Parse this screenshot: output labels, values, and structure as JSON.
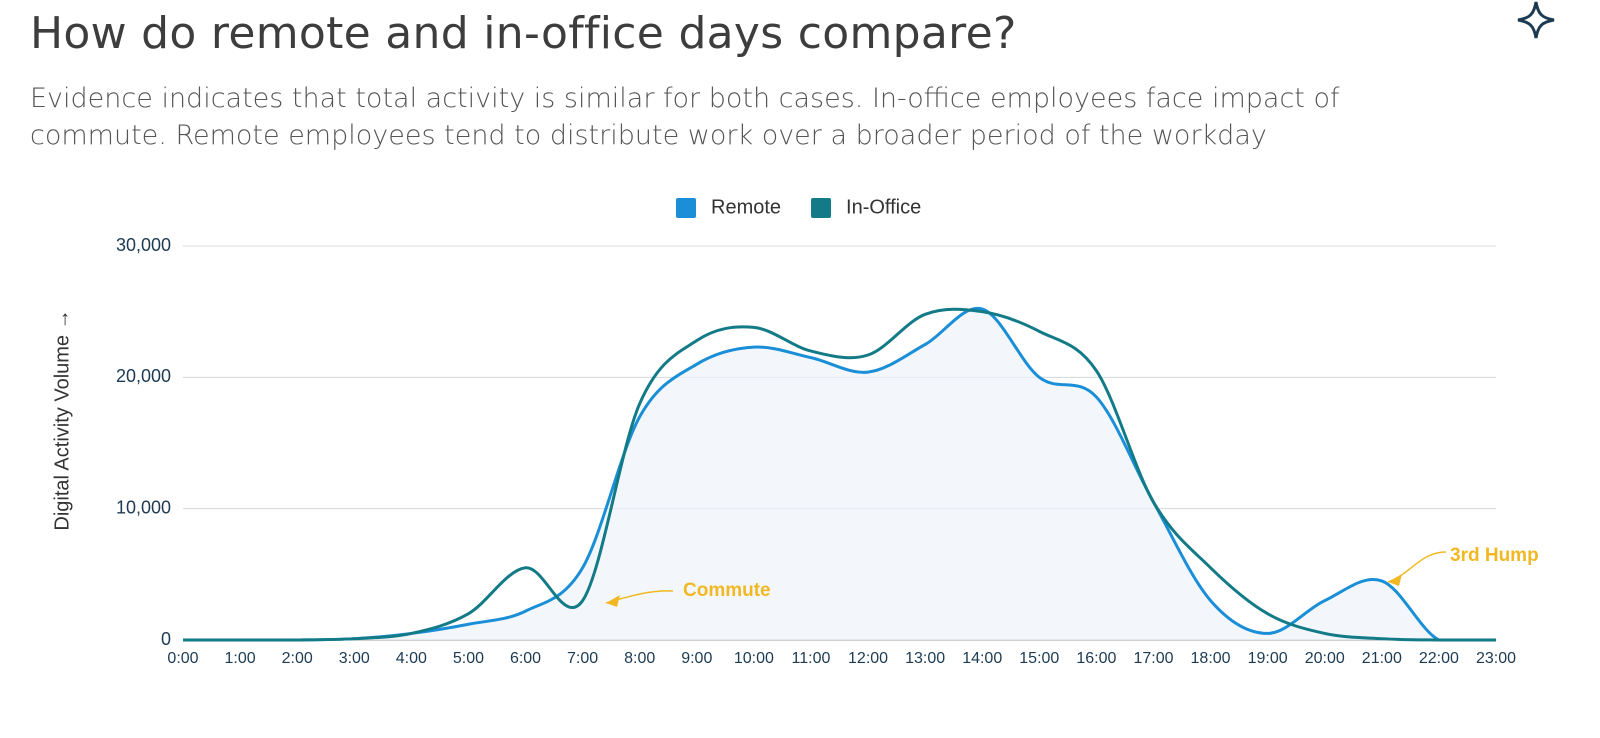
{
  "chart_data": {
    "type": "line",
    "title": "How do remote and in-office days compare?",
    "subtitle": "Evidence indicates that total activity is similar for both cases. In-office employees face impact of commute. Remote employees tend to distribute work over a broader period of the workday",
    "y_label": "Digital Activity Volume →",
    "categories": [
      "0:00",
      "1:00",
      "2:00",
      "3:00",
      "4:00",
      "5:00",
      "6:00",
      "7:00",
      "8:00",
      "9:00",
      "10:00",
      "11:00",
      "12:00",
      "13:00",
      "14:00",
      "15:00",
      "16:00",
      "17:00",
      "18:00",
      "19:00",
      "20:00",
      "21:00",
      "22:00",
      "23:00"
    ],
    "series": [
      {
        "name": "Remote",
        "color": "#1a8fd8",
        "values": [
          0,
          0,
          0,
          100,
          500,
          1200,
          2200,
          5500,
          17000,
          21000,
          22300,
          21500,
          20400,
          22500,
          25200,
          20000,
          18500,
          10500,
          3000,
          500,
          3000,
          4500,
          0,
          0
        ]
      },
      {
        "name": "In-Office",
        "color": "#137a87",
        "values": [
          0,
          0,
          0,
          100,
          500,
          2000,
          5500,
          3000,
          18000,
          22800,
          23800,
          22000,
          21700,
          24800,
          25000,
          23500,
          20500,
          10500,
          5500,
          2000,
          500,
          100,
          0,
          0
        ]
      }
    ],
    "ylim": [
      0,
      30000
    ],
    "yticks": [
      0,
      {
        "value": 10000,
        "label": "10,000"
      },
      {
        "value": 20000,
        "label": "20,000"
      },
      {
        "value": 30000,
        "label": "30,000"
      }
    ],
    "grid": true,
    "legend": "top",
    "annotations": [
      {
        "text": "Commute",
        "color": "#f2b824"
      },
      {
        "text": "3rd Hump",
        "color": "#f2b824"
      }
    ]
  }
}
